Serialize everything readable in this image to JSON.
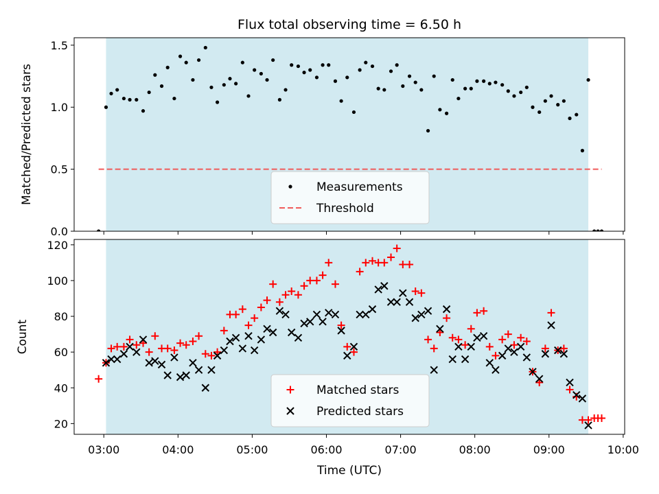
{
  "chart_data": {
    "title": "Flux total observing time = 6.50 h",
    "shared_x": {
      "label": "Time (UTC)",
      "unit": "hours",
      "range": [
        2.6,
        10.02
      ],
      "tick_values": [
        3,
        4,
        5,
        6,
        7,
        8,
        9,
        10
      ],
      "tick_labels": [
        "03:00",
        "04:00",
        "05:00",
        "06:00",
        "07:00",
        "08:00",
        "09:00",
        "10:00"
      ]
    },
    "panels": [
      {
        "type": "scatter",
        "ylabel": "Matched/Predicted stars",
        "ylim": [
          0,
          1.56
        ],
        "y_ticks": [
          0.0,
          0.5,
          1.0,
          1.5
        ],
        "y_tick_labels": [
          "0.0",
          "0.5",
          "1.0",
          "1.5"
        ],
        "observing_window": [
          3.03,
          9.53
        ],
        "window_color": "#add8e6",
        "legend": {
          "position": "bottom-center"
        },
        "threshold": {
          "name": "Threshold",
          "value": 0.5,
          "x_range": [
            2.93,
            9.71
          ],
          "color": "#f05a5a"
        },
        "series": [
          {
            "name": "Measurements",
            "marker": "dot",
            "color": "#000000",
            "x": [
              2.93,
              3.03,
              3.1,
              3.18,
              3.27,
              3.35,
              3.44,
              3.53,
              3.61,
              3.69,
              3.78,
              3.86,
              3.95,
              4.03,
              4.11,
              4.2,
              4.28,
              4.37,
              4.45,
              4.53,
              4.62,
              4.7,
              4.78,
              4.87,
              4.95,
              5.03,
              5.12,
              5.2,
              5.28,
              5.37,
              5.45,
              5.53,
              5.62,
              5.7,
              5.78,
              5.87,
              5.95,
              6.03,
              6.12,
              6.2,
              6.28,
              6.37,
              6.45,
              6.53,
              6.62,
              6.7,
              6.78,
              6.87,
              6.95,
              7.03,
              7.12,
              7.2,
              7.28,
              7.37,
              7.45,
              7.53,
              7.62,
              7.7,
              7.78,
              7.87,
              7.95,
              8.03,
              8.12,
              8.2,
              8.28,
              8.37,
              8.45,
              8.53,
              8.62,
              8.7,
              8.78,
              8.87,
              8.95,
              9.03,
              9.12,
              9.2,
              9.28,
              9.37,
              9.45,
              9.53,
              9.61,
              9.66,
              9.71
            ],
            "y": [
              0.0,
              1.0,
              1.11,
              1.14,
              1.07,
              1.06,
              1.06,
              0.97,
              1.12,
              1.26,
              1.17,
              1.32,
              1.07,
              1.41,
              1.36,
              1.22,
              1.38,
              1.48,
              1.16,
              1.04,
              1.18,
              1.23,
              1.19,
              1.36,
              1.09,
              1.3,
              1.27,
              1.22,
              1.38,
              1.06,
              1.14,
              1.34,
              1.33,
              1.28,
              1.3,
              1.24,
              1.34,
              1.34,
              1.21,
              1.05,
              1.24,
              0.96,
              1.3,
              1.36,
              1.33,
              1.15,
              1.14,
              1.29,
              1.34,
              1.17,
              1.25,
              1.2,
              1.14,
              0.81,
              1.25,
              0.98,
              0.95,
              1.22,
              1.07,
              1.15,
              1.15,
              1.21,
              1.21,
              1.19,
              1.2,
              1.18,
              1.13,
              1.09,
              1.12,
              1.16,
              1.0,
              0.96,
              1.05,
              1.09,
              1.02,
              1.05,
              0.91,
              0.94,
              0.65,
              1.22,
              0.0,
              0.0,
              0.0
            ]
          }
        ]
      },
      {
        "type": "scatter",
        "ylabel": "Count",
        "ylim": [
          14,
          123
        ],
        "y_ticks": [
          20,
          40,
          60,
          80,
          100,
          120
        ],
        "y_tick_labels": [
          "20",
          "40",
          "60",
          "80",
          "100",
          "120"
        ],
        "observing_window": [
          3.03,
          9.53
        ],
        "window_color": "#add8e6",
        "legend": {
          "position": "bottom-center"
        },
        "series": [
          {
            "name": "Matched stars",
            "marker": "plus",
            "color": "#ff0000",
            "x": [
              2.93,
              3.03,
              3.1,
              3.18,
              3.27,
              3.35,
              3.44,
              3.53,
              3.61,
              3.69,
              3.78,
              3.86,
              3.95,
              4.03,
              4.11,
              4.2,
              4.28,
              4.37,
              4.45,
              4.53,
              4.62,
              4.7,
              4.78,
              4.87,
              4.95,
              5.03,
              5.12,
              5.2,
              5.28,
              5.37,
              5.45,
              5.53,
              5.62,
              5.7,
              5.78,
              5.87,
              5.95,
              6.03,
              6.12,
              6.2,
              6.28,
              6.37,
              6.45,
              6.53,
              6.62,
              6.7,
              6.78,
              6.87,
              6.95,
              7.03,
              7.12,
              7.2,
              7.28,
              7.37,
              7.45,
              7.53,
              7.62,
              7.7,
              7.78,
              7.87,
              7.95,
              8.03,
              8.12,
              8.2,
              8.28,
              8.37,
              8.45,
              8.53,
              8.62,
              8.7,
              8.78,
              8.87,
              8.95,
              9.03,
              9.12,
              9.2,
              9.28,
              9.37,
              9.45,
              9.53,
              9.61,
              9.66,
              9.71
            ],
            "y": [
              45,
              54,
              62,
              63,
              63,
              67,
              64,
              65,
              60,
              69,
              62,
              62,
              61,
              65,
              64,
              66,
              69,
              59,
              58,
              60,
              72,
              81,
              81,
              84,
              75,
              79,
              85,
              89,
              98,
              88,
              92,
              94,
              92,
              97,
              100,
              100,
              103,
              110,
              98,
              75,
              63,
              60,
              105,
              110,
              111,
              110,
              110,
              113,
              118,
              109,
              109,
              94,
              93,
              67,
              62,
              71,
              79,
              68,
              67,
              64,
              73,
              82,
              83,
              63,
              58,
              67,
              70,
              64,
              68,
              66,
              49,
              43,
              62,
              82,
              61,
              62,
              39,
              35,
              22,
              22,
              23,
              23,
              23
            ]
          },
          {
            "name": "Predicted stars",
            "marker": "x",
            "color": "#000000",
            "x": [
              3.03,
              3.1,
              3.18,
              3.27,
              3.35,
              3.44,
              3.53,
              3.61,
              3.69,
              3.78,
              3.86,
              3.95,
              4.03,
              4.11,
              4.2,
              4.28,
              4.37,
              4.45,
              4.53,
              4.62,
              4.7,
              4.78,
              4.87,
              4.95,
              5.03,
              5.12,
              5.2,
              5.28,
              5.37,
              5.45,
              5.53,
              5.62,
              5.7,
              5.78,
              5.87,
              5.95,
              6.03,
              6.12,
              6.2,
              6.28,
              6.37,
              6.45,
              6.53,
              6.62,
              6.7,
              6.78,
              6.87,
              6.95,
              7.03,
              7.12,
              7.2,
              7.28,
              7.37,
              7.45,
              7.53,
              7.62,
              7.7,
              7.78,
              7.87,
              7.95,
              8.03,
              8.12,
              8.2,
              8.28,
              8.37,
              8.45,
              8.53,
              8.62,
              8.7,
              8.78,
              8.87,
              8.95,
              9.03,
              9.12,
              9.2,
              9.28,
              9.37,
              9.45,
              9.53
            ],
            "y": [
              54,
              56,
              56,
              59,
              63,
              60,
              67,
              54,
              55,
              53,
              47,
              57,
              46,
              47,
              54,
              50,
              40,
              50,
              58,
              61,
              66,
              68,
              62,
              69,
              61,
              67,
              73,
              71,
              83,
              81,
              71,
              68,
              76,
              77,
              81,
              77,
              82,
              81,
              72,
              58,
              63,
              81,
              81,
              84,
              95,
              97,
              88,
              88,
              93,
              88,
              79,
              81,
              83,
              50,
              73,
              84,
              56,
              63,
              56,
              63,
              68,
              69,
              54,
              50,
              58,
              62,
              60,
              63,
              57,
              49,
              45,
              59,
              75,
              61,
              59,
              43,
              36,
              34,
              19
            ]
          }
        ]
      }
    ]
  }
}
